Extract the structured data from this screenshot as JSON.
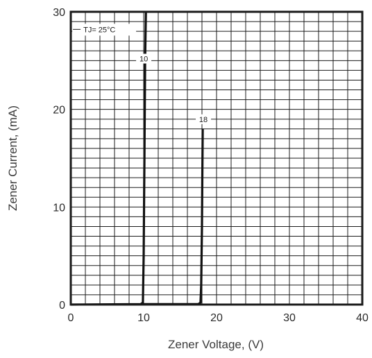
{
  "chart_data": {
    "type": "line",
    "title": "",
    "xlabel": "Zener Voltage, (V)",
    "ylabel": "Zener Current, (mA)",
    "xlim": [
      0,
      40
    ],
    "ylim": [
      0,
      30
    ],
    "x_major_ticks": [
      "0",
      "10",
      "20",
      "30",
      "40"
    ],
    "y_major_ticks": [
      "0",
      "10",
      "20",
      "30"
    ],
    "x_minor_step": 2,
    "y_minor_step": 1,
    "grid": true,
    "annotation": {
      "text": "TJ= 25°C"
    },
    "series": [
      {
        "name": "10",
        "color": "#111111",
        "points": [
          [
            0,
            0
          ],
          [
            9.6,
            0.05
          ],
          [
            9.9,
            0.2
          ],
          [
            10.0,
            5
          ],
          [
            10.1,
            15
          ],
          [
            10.2,
            25
          ],
          [
            10.3,
            30
          ]
        ]
      },
      {
        "name": "18",
        "color": "#111111",
        "points": [
          [
            10.0,
            0.05
          ],
          [
            17.5,
            0.05
          ],
          [
            17.8,
            0.2
          ],
          [
            17.9,
            2
          ],
          [
            18.0,
            8
          ],
          [
            18.05,
            13
          ],
          [
            18.1,
            18
          ]
        ]
      }
    ]
  }
}
